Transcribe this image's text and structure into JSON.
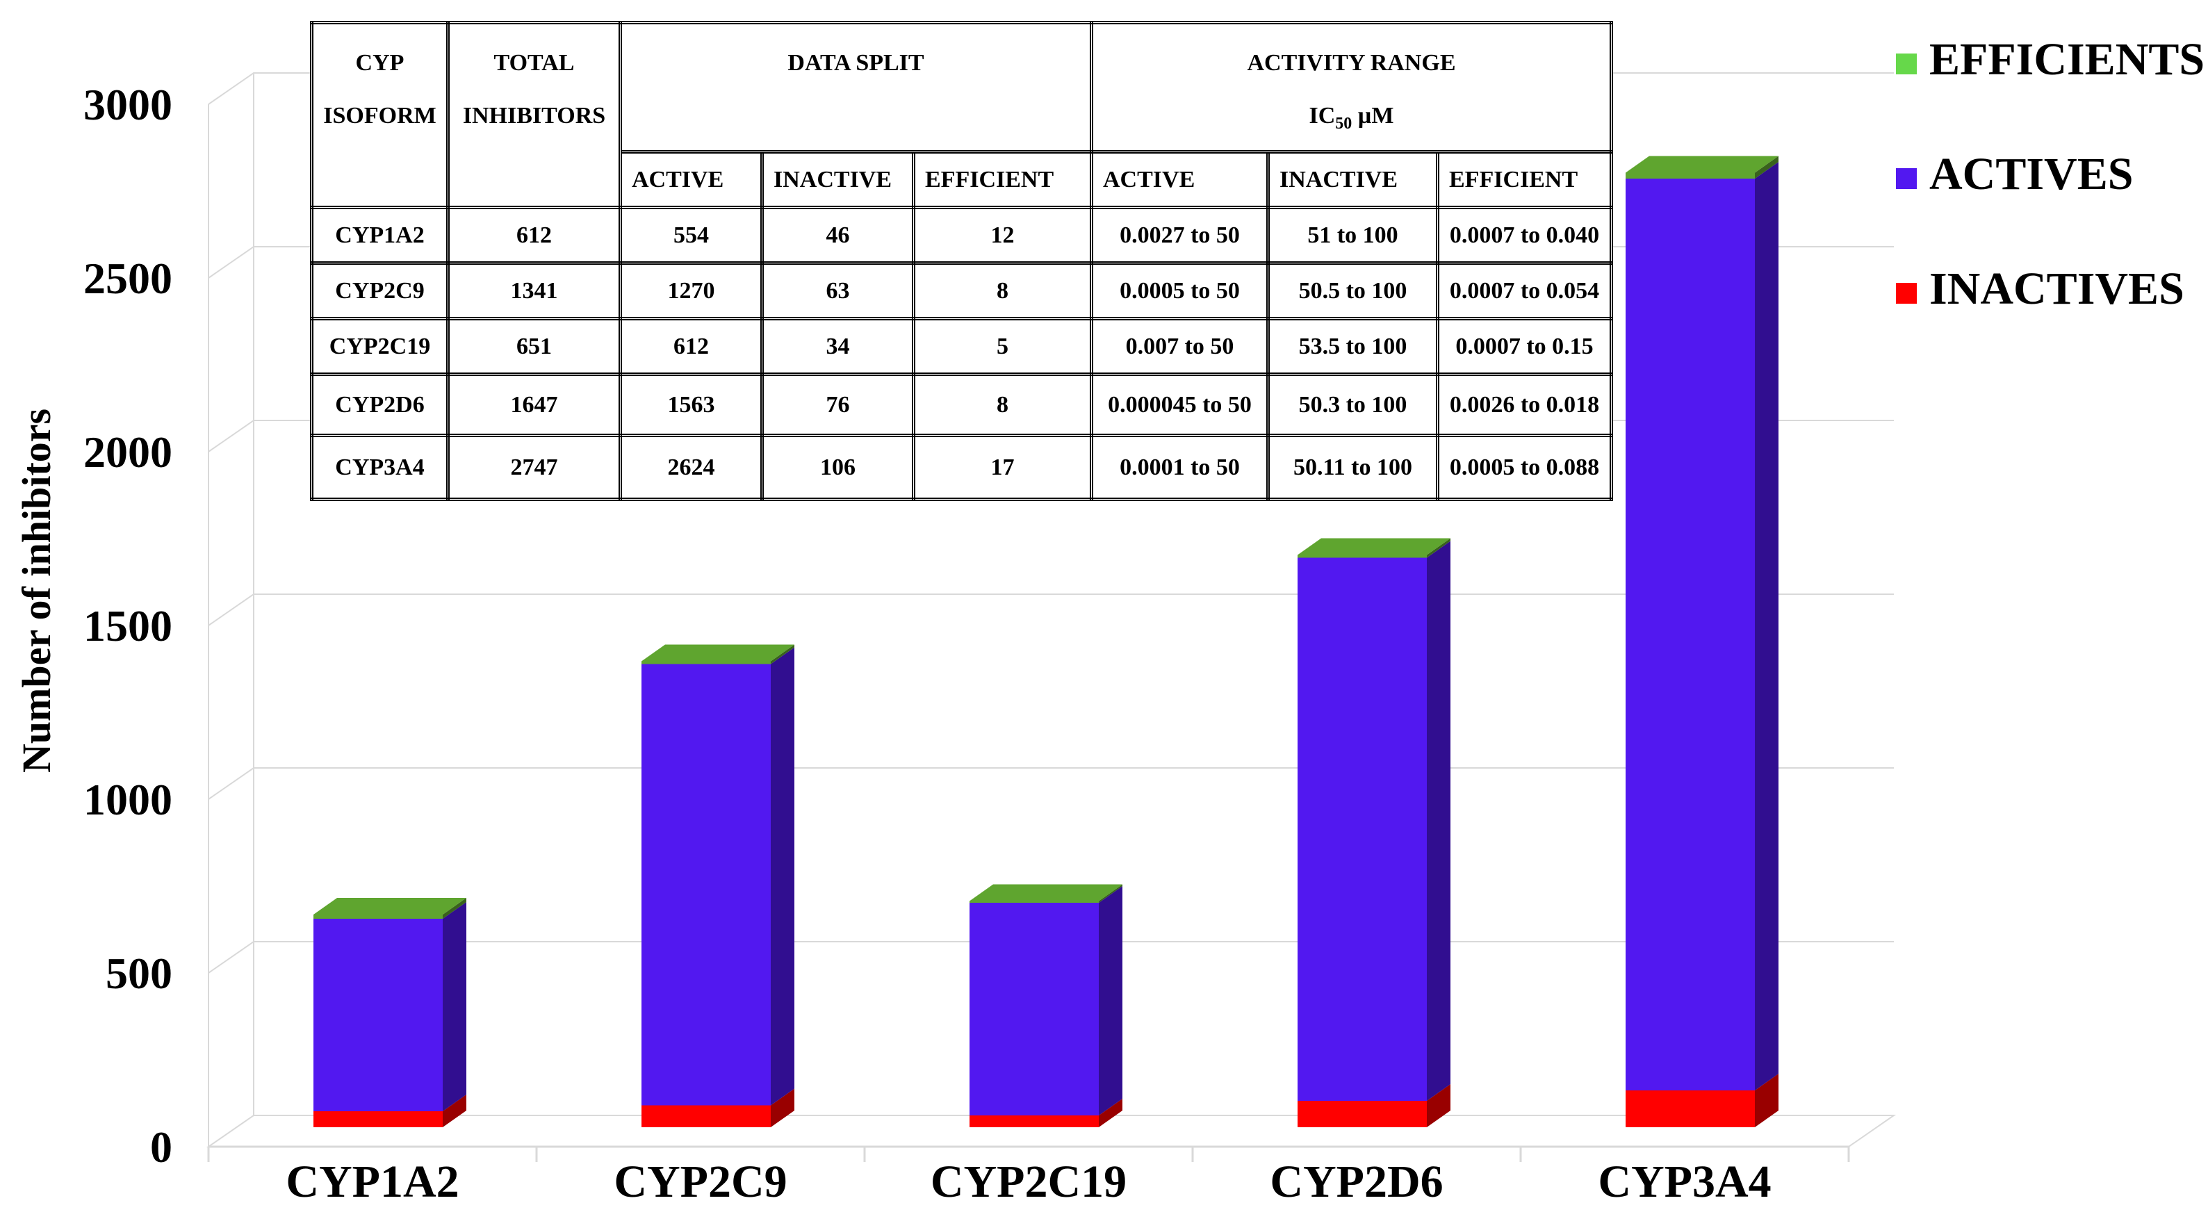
{
  "chart_data": {
    "type": "bar",
    "stacked": true,
    "style": "3d",
    "ylabel": "Number of inhibitors",
    "xlabel": "",
    "ylim": [
      0,
      3000
    ],
    "yticks": [
      0,
      500,
      1000,
      1500,
      2000,
      2500,
      3000
    ],
    "grid": true,
    "legend_position": "top-right",
    "categories": [
      "CYP1A2",
      "CYP2C9",
      "CYP2C19",
      "CYP2D6",
      "CYP3A4"
    ],
    "series": [
      {
        "name": "INACTIVES",
        "color": "#ff0000",
        "values": [
          46,
          63,
          34,
          76,
          106
        ]
      },
      {
        "name": "ACTIVES",
        "color": "#5218f0",
        "values": [
          554,
          1270,
          612,
          1563,
          2624
        ]
      },
      {
        "name": "EFFICIENTS",
        "color": "#5fa52f",
        "values": [
          12,
          8,
          5,
          8,
          17
        ]
      }
    ],
    "legend": [
      "EFFICIENTS",
      "ACTIVES",
      "INACTIVES"
    ],
    "legend_colors": [
      "#66d84a",
      "#5218f0",
      "#ff0000"
    ]
  },
  "table": {
    "header_cyp_line1": "CYP",
    "header_cyp_line2": "ISOFORM",
    "header_total_line1": "TOTAL",
    "header_total_line2": "INHIBITORS",
    "header_split": "DATA SPLIT",
    "header_range_line1": "ACTIVITY RANGE",
    "header_range_ic": "IC",
    "header_range_sub": "50",
    "header_range_unit": " µM",
    "subheaders": [
      "ACTIVE",
      "INACTIVE",
      "EFFICIENT",
      "ACTIVE",
      "INACTIVE",
      "EFFICIENT"
    ],
    "rows": [
      {
        "isoform": "CYP1A2",
        "total": "612",
        "active": "554",
        "inactive": "46",
        "efficient": "12",
        "range_active": "0.0027 to 50",
        "range_inactive": "51 to 100",
        "range_efficient": "0.0007 to 0.040"
      },
      {
        "isoform": "CYP2C9",
        "total": "1341",
        "active": "1270",
        "inactive": "63",
        "efficient": "8",
        "range_active": "0.0005 to 50",
        "range_inactive": "50.5 to 100",
        "range_efficient": "0.0007 to 0.054"
      },
      {
        "isoform": "CYP2C19",
        "total": "651",
        "active": "612",
        "inactive": "34",
        "efficient": "5",
        "range_active": "0.007 to 50",
        "range_inactive": "53.5 to 100",
        "range_efficient": "0.0007 to 0.15"
      },
      {
        "isoform": "CYP2D6",
        "total": "1647",
        "active": "1563",
        "inactive": "76",
        "efficient": "8",
        "range_active": "0.000045 to 50",
        "range_inactive": "50.3 to 100",
        "range_efficient": "0.0026 to 0.018"
      },
      {
        "isoform": "CYP3A4",
        "total": "2747",
        "active": "2624",
        "inactive": "106",
        "efficient": "17",
        "range_active": "0.0001 to 50",
        "range_inactive": "50.11 to 100",
        "range_efficient": "0.0005 to 0.088"
      }
    ]
  }
}
